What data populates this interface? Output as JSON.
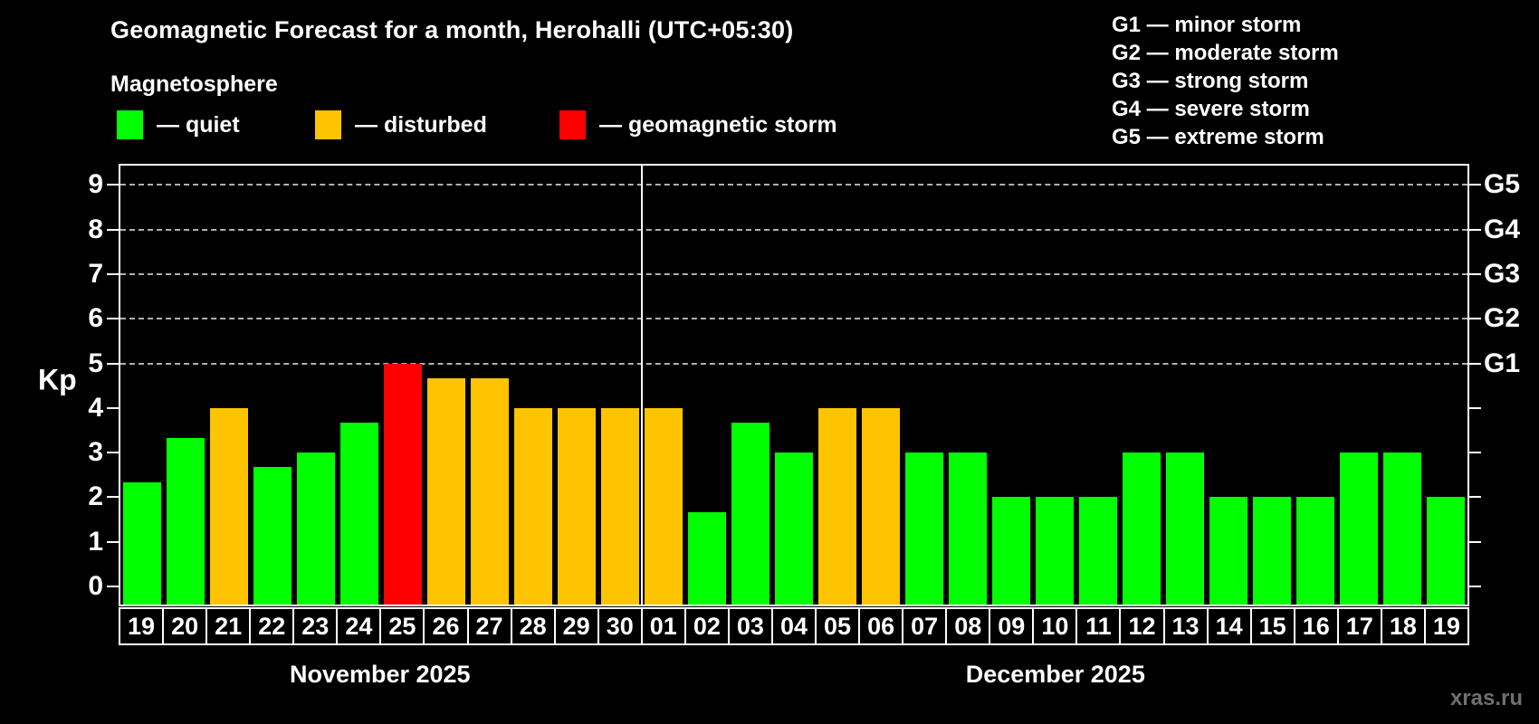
{
  "title": "Geomagnetic Forecast for a month, Herohalli (UTC+05:30)",
  "subtitle": "Magnetosphere",
  "legend": {
    "quiet_label": "— quiet",
    "disturbed_label": "— disturbed",
    "storm_label": "— geomagnetic storm"
  },
  "g_legend_lines": [
    "G1 — minor storm",
    "G2 — moderate storm",
    "G3 — strong storm",
    "G4 — severe storm",
    "G5 — extreme storm"
  ],
  "watermark": "xras.ru",
  "colors": {
    "quiet": "#00ff00",
    "disturbed": "#ffc400",
    "storm": "#ff0000",
    "grid": "#b0b0b0",
    "frame": "#ffffff",
    "background": "#000000",
    "watermark": "#6f6f6f"
  },
  "chart_data": {
    "type": "bar",
    "ylabel": "Kp",
    "ylim": [
      -0.41,
      9.43
    ],
    "yticks": [
      0,
      1,
      2,
      3,
      4,
      5,
      6,
      7,
      8,
      9
    ],
    "gridlines_at": [
      5,
      6,
      7,
      8,
      9
    ],
    "grid": "dashed-horizontal",
    "right_axis_labels": [
      {
        "value": 5,
        "label": "G1"
      },
      {
        "value": 6,
        "label": "G2"
      },
      {
        "value": 7,
        "label": "G3"
      },
      {
        "value": 8,
        "label": "G4"
      },
      {
        "value": 9,
        "label": "G5"
      }
    ],
    "months": [
      {
        "label": "November 2025",
        "days": 12
      },
      {
        "label": "December 2025",
        "days": 19
      }
    ],
    "bars": [
      {
        "day": "19",
        "kp": 2.33,
        "status": "quiet"
      },
      {
        "day": "20",
        "kp": 3.33,
        "status": "quiet"
      },
      {
        "day": "21",
        "kp": 4.0,
        "status": "disturbed"
      },
      {
        "day": "22",
        "kp": 2.67,
        "status": "quiet"
      },
      {
        "day": "23",
        "kp": 3.0,
        "status": "quiet"
      },
      {
        "day": "24",
        "kp": 3.67,
        "status": "quiet"
      },
      {
        "day": "25",
        "kp": 5.0,
        "status": "storm"
      },
      {
        "day": "26",
        "kp": 4.67,
        "status": "disturbed"
      },
      {
        "day": "27",
        "kp": 4.67,
        "status": "disturbed"
      },
      {
        "day": "28",
        "kp": 4.0,
        "status": "disturbed"
      },
      {
        "day": "29",
        "kp": 4.0,
        "status": "disturbed"
      },
      {
        "day": "30",
        "kp": 4.0,
        "status": "disturbed"
      },
      {
        "day": "01",
        "kp": 4.0,
        "status": "disturbed"
      },
      {
        "day": "02",
        "kp": 1.67,
        "status": "quiet"
      },
      {
        "day": "03",
        "kp": 3.67,
        "status": "quiet"
      },
      {
        "day": "04",
        "kp": 3.0,
        "status": "quiet"
      },
      {
        "day": "05",
        "kp": 4.0,
        "status": "disturbed"
      },
      {
        "day": "06",
        "kp": 4.0,
        "status": "disturbed"
      },
      {
        "day": "07",
        "kp": 3.0,
        "status": "quiet"
      },
      {
        "day": "08",
        "kp": 3.0,
        "status": "quiet"
      },
      {
        "day": "09",
        "kp": 2.0,
        "status": "quiet"
      },
      {
        "day": "10",
        "kp": 2.0,
        "status": "quiet"
      },
      {
        "day": "11",
        "kp": 2.0,
        "status": "quiet"
      },
      {
        "day": "12",
        "kp": 3.0,
        "status": "quiet"
      },
      {
        "day": "13",
        "kp": 3.0,
        "status": "quiet"
      },
      {
        "day": "14",
        "kp": 2.0,
        "status": "quiet"
      },
      {
        "day": "15",
        "kp": 2.0,
        "status": "quiet"
      },
      {
        "day": "16",
        "kp": 2.0,
        "status": "quiet"
      },
      {
        "day": "17",
        "kp": 3.0,
        "status": "quiet"
      },
      {
        "day": "18",
        "kp": 3.0,
        "status": "quiet"
      },
      {
        "day": "19",
        "kp": 2.0,
        "status": "quiet"
      }
    ]
  }
}
